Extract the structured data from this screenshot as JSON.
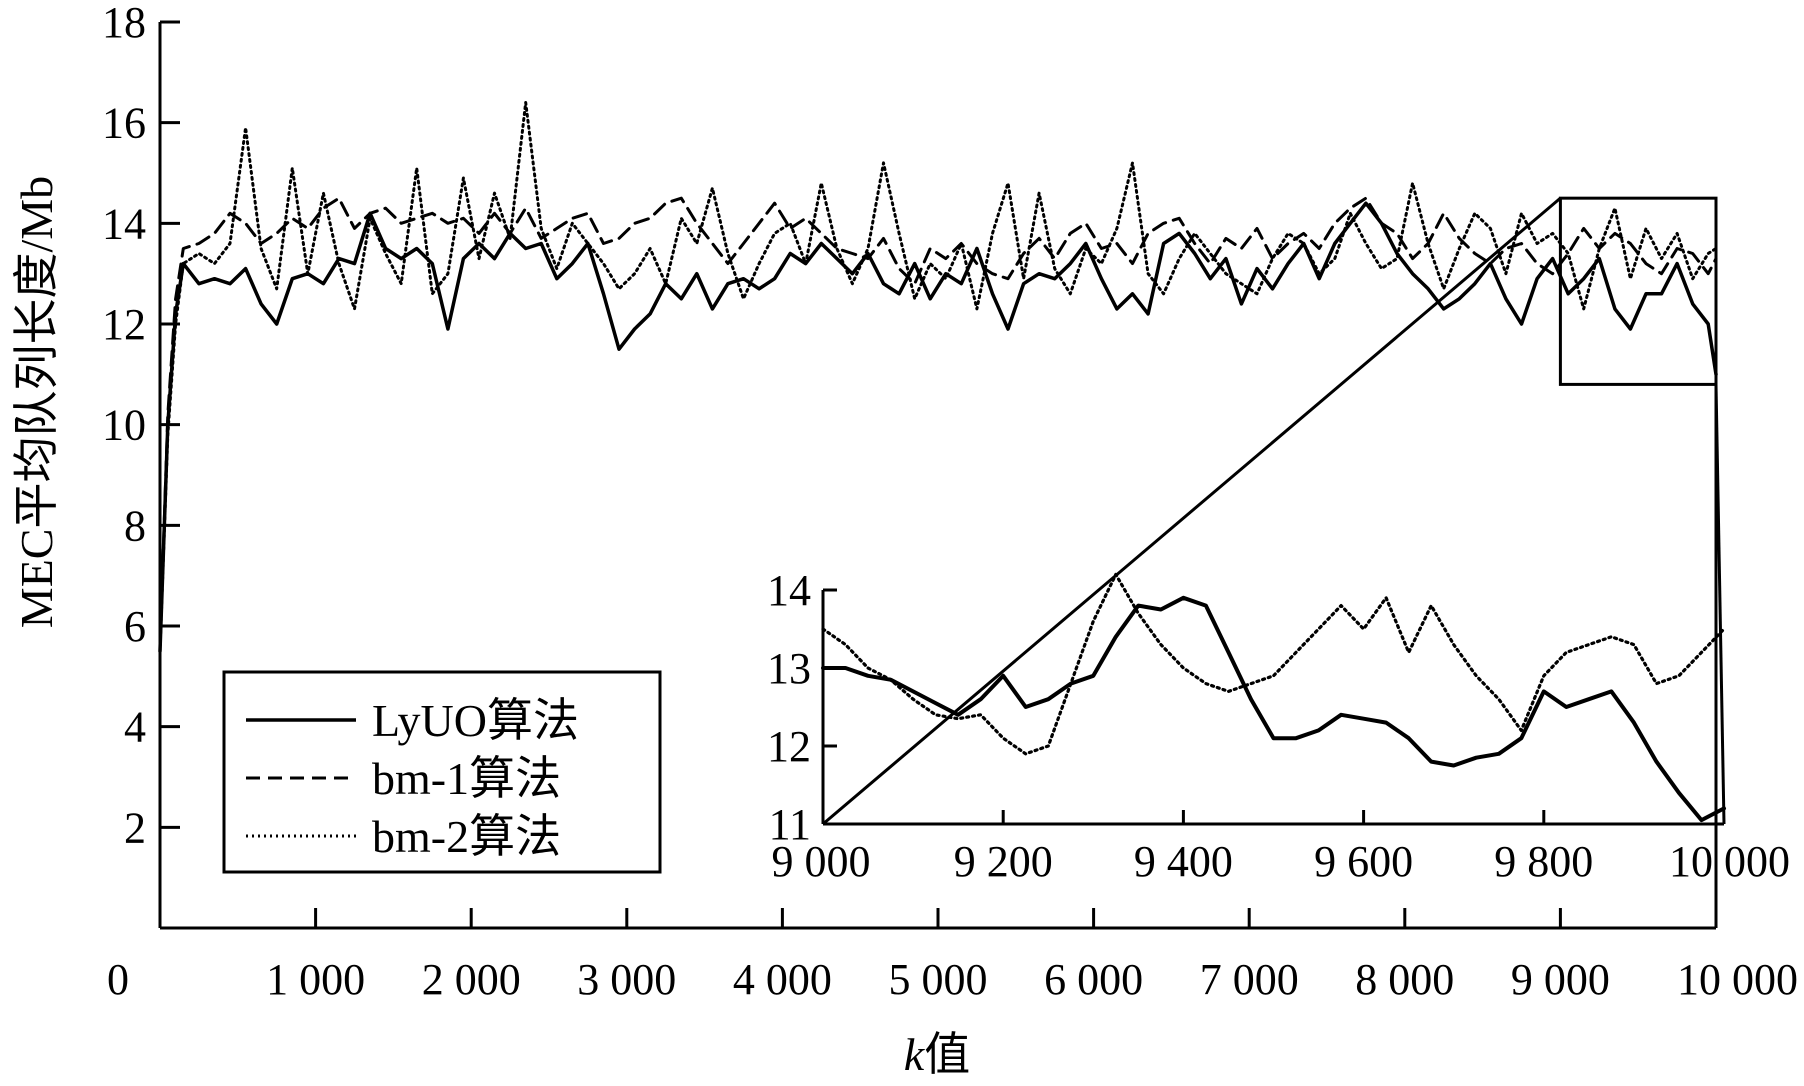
{
  "chart_data": {
    "type": "line",
    "title": "",
    "xlabel_prefix": "k",
    "xlabel_suffix": "值",
    "ylabel": "MEC平均队列长度/Mb",
    "xlim": [
      0,
      10000
    ],
    "ylim": [
      0,
      18
    ],
    "x_ticks": [
      0,
      1000,
      2000,
      3000,
      4000,
      5000,
      6000,
      7000,
      8000,
      9000,
      10000
    ],
    "x_tick_labels": [
      "0",
      "1 000",
      "2 000",
      "3 000",
      "4 000",
      "5 000",
      "6 000",
      "7 000",
      "8 000",
      "9 000",
      "10 000"
    ],
    "y_ticks": [
      2,
      4,
      6,
      8,
      10,
      12,
      14,
      16,
      18
    ],
    "y_tick_labels": [
      "2",
      "4",
      "6",
      "8",
      "10",
      "12",
      "14",
      "16",
      "18"
    ],
    "legend_position": "bottom-left",
    "x": [
      0,
      50,
      100,
      150,
      250,
      350,
      450,
      550,
      650,
      750,
      850,
      950,
      1050,
      1150,
      1250,
      1350,
      1450,
      1550,
      1650,
      1750,
      1850,
      1950,
      2050,
      2150,
      2250,
      2350,
      2450,
      2550,
      2650,
      2750,
      2850,
      2950,
      3050,
      3150,
      3250,
      3350,
      3450,
      3550,
      3650,
      3750,
      3850,
      3950,
      4050,
      4150,
      4250,
      4350,
      4450,
      4550,
      4650,
      4750,
      4850,
      4950,
      5050,
      5150,
      5250,
      5350,
      5450,
      5550,
      5650,
      5750,
      5850,
      5950,
      6050,
      6150,
      6250,
      6350,
      6450,
      6550,
      6650,
      6750,
      6850,
      6950,
      7050,
      7150,
      7250,
      7350,
      7450,
      7550,
      7650,
      7750,
      7850,
      7950,
      8050,
      8150,
      8250,
      8350,
      8450,
      8550,
      8650,
      8750,
      8850,
      8950,
      9050,
      9150,
      9250,
      9350,
      9450,
      9550,
      9650,
      9750,
      9850,
      9950,
      10000
    ],
    "series": [
      {
        "name": "LyUO算法",
        "style": "solid",
        "values": [
          5.5,
          10.0,
          12.2,
          13.2,
          12.8,
          12.9,
          12.8,
          13.1,
          12.4,
          12.0,
          12.9,
          13.0,
          12.8,
          13.3,
          13.2,
          14.2,
          13.5,
          13.3,
          13.5,
          13.2,
          11.9,
          13.3,
          13.6,
          13.3,
          13.8,
          13.5,
          13.6,
          12.9,
          13.2,
          13.6,
          12.6,
          11.5,
          11.9,
          12.2,
          12.8,
          12.5,
          13.0,
          12.3,
          12.8,
          12.9,
          12.7,
          12.9,
          13.4,
          13.2,
          13.6,
          13.3,
          13.0,
          13.4,
          12.8,
          12.6,
          13.2,
          12.5,
          13.0,
          12.8,
          13.5,
          12.6,
          11.9,
          12.8,
          13.0,
          12.9,
          13.2,
          13.6,
          12.9,
          12.3,
          12.6,
          12.2,
          13.6,
          13.8,
          13.4,
          12.9,
          13.3,
          12.4,
          13.1,
          12.7,
          13.2,
          13.6,
          12.9,
          13.6,
          14.0,
          14.4,
          14.0,
          13.4,
          13.0,
          12.7,
          12.3,
          12.5,
          12.8,
          13.2,
          12.5,
          12.0,
          12.9,
          13.3,
          12.6,
          12.9,
          13.3,
          12.3,
          11.9,
          12.6,
          12.6,
          13.2,
          12.4,
          12.0,
          11.0
        ]
      },
      {
        "name": "bm-1算法",
        "style": "dashed",
        "values": [
          5.5,
          10.2,
          12.5,
          13.5,
          13.6,
          13.8,
          14.2,
          14.0,
          13.6,
          13.8,
          14.1,
          13.9,
          14.3,
          14.5,
          13.9,
          14.2,
          14.3,
          14.0,
          14.1,
          14.2,
          14.0,
          14.1,
          13.8,
          14.2,
          13.8,
          14.3,
          13.7,
          13.9,
          14.1,
          14.2,
          13.6,
          13.7,
          14.0,
          14.1,
          14.4,
          14.5,
          14.0,
          13.6,
          13.2,
          13.6,
          14.0,
          14.4,
          13.9,
          14.1,
          13.8,
          13.5,
          13.4,
          13.3,
          13.7,
          13.1,
          12.8,
          13.5,
          13.3,
          13.6,
          13.2,
          13.0,
          12.9,
          13.4,
          13.7,
          13.3,
          13.8,
          14.0,
          13.5,
          13.6,
          13.2,
          13.8,
          14.0,
          14.1,
          13.6,
          13.2,
          13.7,
          13.5,
          13.9,
          13.3,
          13.6,
          13.8,
          13.5,
          14.0,
          14.3,
          14.5,
          14.0,
          13.8,
          13.3,
          13.6,
          14.2,
          13.7,
          13.4,
          13.2,
          13.5,
          13.6,
          13.2,
          13.0,
          13.4,
          13.9,
          13.5,
          13.8,
          13.6,
          13.2,
          13.0,
          13.5,
          13.4,
          13.0,
          13.3
        ]
      },
      {
        "name": "bm-2算法",
        "style": "dotted",
        "values": [
          5.5,
          9.8,
          12.0,
          13.2,
          13.4,
          13.2,
          13.6,
          15.9,
          13.5,
          12.7,
          15.1,
          13.0,
          14.6,
          13.2,
          12.3,
          14.1,
          13.4,
          12.8,
          15.1,
          12.6,
          13.0,
          14.9,
          13.3,
          14.6,
          13.7,
          16.4,
          13.9,
          13.1,
          14.0,
          13.6,
          13.2,
          12.7,
          13.0,
          13.5,
          12.8,
          14.1,
          13.6,
          14.7,
          13.4,
          12.5,
          13.2,
          13.8,
          14.0,
          13.2,
          14.8,
          13.5,
          12.8,
          13.5,
          15.2,
          13.8,
          12.5,
          13.2,
          12.9,
          13.6,
          12.3,
          13.8,
          14.8,
          12.9,
          14.6,
          13.1,
          12.6,
          13.5,
          13.2,
          13.9,
          15.2,
          13.0,
          12.6,
          13.3,
          13.8,
          13.4,
          13.0,
          12.8,
          12.6,
          13.3,
          13.8,
          13.6,
          13.0,
          13.3,
          14.2,
          13.6,
          13.1,
          13.3,
          14.8,
          13.6,
          12.7,
          13.5,
          14.2,
          13.9,
          13.0,
          14.2,
          13.6,
          13.8,
          13.4,
          12.3,
          13.5,
          14.3,
          12.9,
          13.9,
          13.3,
          13.8,
          12.9,
          13.4,
          13.5
        ]
      }
    ],
    "inset": {
      "xlim": [
        9000,
        10000
      ],
      "ylim": [
        11,
        14
      ],
      "x_ticks": [
        9000,
        9200,
        9400,
        9600,
        9800,
        10000
      ],
      "x_tick_labels": [
        "9 000",
        "9 200",
        "9 400",
        "9 600",
        "9 800",
        "10 000"
      ],
      "y_ticks": [
        11,
        12,
        13,
        14
      ],
      "y_tick_labels": [
        "11",
        "12",
        "13",
        "14"
      ],
      "zoom_box": {
        "x": [
          9000,
          10000
        ],
        "y": [
          10.8,
          14.5
        ]
      },
      "x": [
        9000,
        9025,
        9050,
        9075,
        9100,
        9125,
        9150,
        9175,
        9200,
        9225,
        9250,
        9275,
        9300,
        9325,
        9350,
        9375,
        9400,
        9425,
        9450,
        9475,
        9500,
        9525,
        9550,
        9575,
        9600,
        9625,
        9650,
        9675,
        9700,
        9725,
        9750,
        9775,
        9800,
        9825,
        9850,
        9875,
        9900,
        9925,
        9950,
        9975,
        10000
      ],
      "series": [
        {
          "name": "LyUO算法",
          "style": "solid",
          "values": [
            13.0,
            13.0,
            12.9,
            12.85,
            12.7,
            12.55,
            12.4,
            12.6,
            12.9,
            12.5,
            12.6,
            12.8,
            12.9,
            13.4,
            13.8,
            13.75,
            13.9,
            13.8,
            13.2,
            12.6,
            12.1,
            12.1,
            12.2,
            12.4,
            12.35,
            12.3,
            12.1,
            11.8,
            11.75,
            11.85,
            11.9,
            12.1,
            12.7,
            12.5,
            12.6,
            12.7,
            12.3,
            11.8,
            11.4,
            11.05,
            11.2
          ]
        },
        {
          "name": "bm-2算法",
          "style": "dotted",
          "values": [
            13.5,
            13.3,
            13.0,
            12.85,
            12.6,
            12.4,
            12.35,
            12.4,
            12.1,
            11.9,
            12.0,
            12.8,
            13.6,
            14.2,
            13.7,
            13.3,
            13.0,
            12.8,
            12.7,
            12.8,
            12.9,
            13.2,
            13.5,
            13.8,
            13.5,
            13.9,
            13.2,
            13.8,
            13.3,
            12.9,
            12.6,
            12.2,
            12.9,
            13.2,
            13.3,
            13.4,
            13.3,
            12.8,
            12.9,
            13.2,
            13.5
          ]
        }
      ]
    }
  }
}
